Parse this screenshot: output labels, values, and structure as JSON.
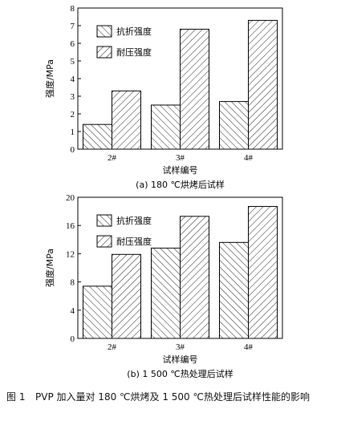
{
  "chart_data": [
    {
      "type": "bar",
      "categories": [
        "2#",
        "3#",
        "4#"
      ],
      "series": [
        {
          "name": "抗折强度",
          "values": [
            1.4,
            2.5,
            2.7
          ]
        },
        {
          "name": "耐压强度",
          "values": [
            3.3,
            6.8,
            7.3
          ]
        }
      ],
      "ylabel": "强度/MPa",
      "xlabel": "试样编号",
      "ylim": [
        0,
        8
      ],
      "yticks": [
        0,
        1,
        2,
        3,
        4,
        5,
        6,
        7,
        8
      ],
      "caption": "(a) 180 ℃烘烤后试样",
      "legend_position": "top-left"
    },
    {
      "type": "bar",
      "categories": [
        "2#",
        "3#",
        "4#"
      ],
      "series": [
        {
          "name": "抗折强度",
          "values": [
            7.4,
            12.8,
            13.6
          ]
        },
        {
          "name": "耐压强度",
          "values": [
            11.9,
            17.3,
            18.7
          ]
        }
      ],
      "ylabel": "强度/MPa",
      "xlabel": "试样编号",
      "ylim": [
        0,
        20
      ],
      "yticks": [
        0,
        4,
        8,
        12,
        16,
        20
      ],
      "caption": "(b) 1 500 ℃热处理后试样",
      "legend_position": "top-left"
    }
  ],
  "figure_caption": {
    "number": "图 1",
    "text": "PVP 加入量对 180 ℃烘烤及 1 500 ℃热处理后试样性能的影响"
  }
}
